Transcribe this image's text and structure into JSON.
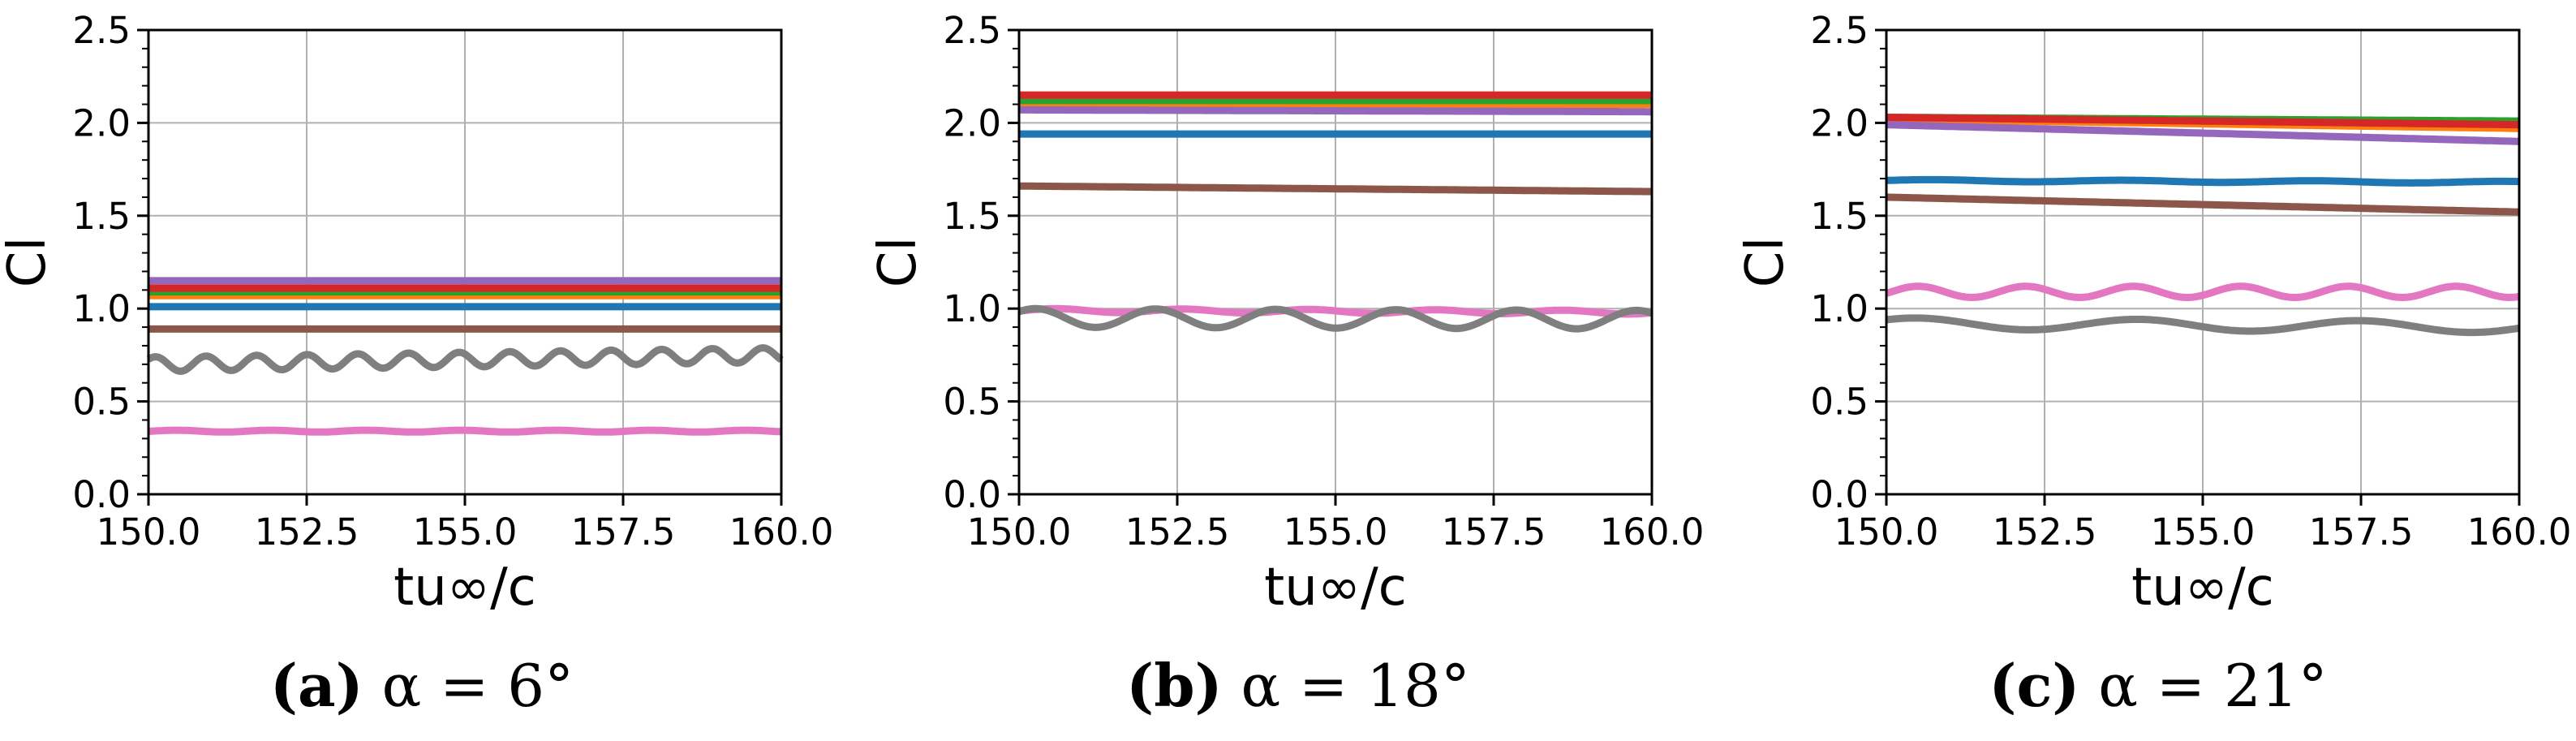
{
  "chart_data": [
    {
      "type": "line",
      "caption": {
        "label": "(a)",
        "text": "α = 6°"
      },
      "xlabel": "tu∞/c",
      "ylabel": "Cl",
      "xlim": [
        150.0,
        160.0
      ],
      "ylim": [
        0.0,
        2.5
      ],
      "xticks": [
        "150.0",
        "152.5",
        "155.0",
        "157.5",
        "160.0"
      ],
      "yticks": [
        "0.0",
        "0.5",
        "1.0",
        "1.5",
        "2.0",
        "2.5"
      ],
      "grid": true,
      "series": [
        {
          "color": "#1f77b4",
          "start": 1.01,
          "end": 1.01,
          "amp": 0.0,
          "period": 1
        },
        {
          "color": "#ff7f0e",
          "start": 1.07,
          "end": 1.07,
          "amp": 0.0,
          "period": 1
        },
        {
          "color": "#2ca02c",
          "start": 1.09,
          "end": 1.09,
          "amp": 0.0,
          "period": 1
        },
        {
          "color": "#d62728",
          "start": 1.11,
          "end": 1.11,
          "amp": 0.0,
          "period": 1
        },
        {
          "color": "#9467bd",
          "start": 1.15,
          "end": 1.15,
          "amp": 0.0,
          "period": 1
        },
        {
          "color": "#8c564b",
          "start": 0.89,
          "end": 0.89,
          "amp": 0.0,
          "period": 1
        },
        {
          "color": "#e377c2",
          "start": 0.34,
          "end": 0.34,
          "amp": 0.005,
          "period": 1.5
        },
        {
          "color": "#7f7f7f",
          "start": 0.7,
          "end": 0.75,
          "amp": 0.04,
          "period": 0.8
        }
      ]
    },
    {
      "type": "line",
      "caption": {
        "label": "(b)",
        "text": "α = 18°"
      },
      "xlabel": "tu∞/c",
      "ylabel": "Cl",
      "xlim": [
        150.0,
        160.0
      ],
      "ylim": [
        0.0,
        2.5
      ],
      "xticks": [
        "150.0",
        "152.5",
        "155.0",
        "157.5",
        "160.0"
      ],
      "yticks": [
        "0.0",
        "0.5",
        "1.0",
        "1.5",
        "2.0",
        "2.5"
      ],
      "grid": true,
      "series": [
        {
          "color": "#1f77b4",
          "start": 1.94,
          "end": 1.94,
          "amp": 0.0,
          "period": 1
        },
        {
          "color": "#ff7f0e",
          "start": 2.1,
          "end": 2.1,
          "amp": 0.0,
          "period": 1
        },
        {
          "color": "#2ca02c",
          "start": 2.12,
          "end": 2.12,
          "amp": 0.0,
          "period": 1
        },
        {
          "color": "#d62728",
          "start": 2.15,
          "end": 2.15,
          "amp": 0.0,
          "period": 1
        },
        {
          "color": "#9467bd",
          "start": 2.07,
          "end": 2.06,
          "amp": 0.0,
          "period": 1
        },
        {
          "color": "#8c564b",
          "start": 1.66,
          "end": 1.63,
          "amp": 0.0,
          "period": 1
        },
        {
          "color": "#e377c2",
          "start": 0.99,
          "end": 0.98,
          "amp": 0.01,
          "period": 2.0
        },
        {
          "color": "#7f7f7f",
          "start": 0.95,
          "end": 0.94,
          "amp": 0.05,
          "period": 1.9
        }
      ]
    },
    {
      "type": "line",
      "caption": {
        "label": "(c)",
        "text": "α = 21°"
      },
      "xlabel": "tu∞/c",
      "ylabel": "Cl",
      "xlim": [
        150.0,
        160.0
      ],
      "ylim": [
        0.0,
        2.5
      ],
      "xticks": [
        "150.0",
        "152.5",
        "155.0",
        "157.5",
        "160.0"
      ],
      "yticks": [
        "0.0",
        "0.5",
        "1.0",
        "1.5",
        "2.0",
        "2.5"
      ],
      "grid": true,
      "series": [
        {
          "color": "#1f77b4",
          "start": 1.69,
          "end": 1.68,
          "amp": 0.005,
          "period": 3
        },
        {
          "color": "#ff7f0e",
          "start": 2.02,
          "end": 1.97,
          "amp": 0.0,
          "period": 1
        },
        {
          "color": "#2ca02c",
          "start": 2.03,
          "end": 2.01,
          "amp": 0.0,
          "period": 1
        },
        {
          "color": "#d62728",
          "start": 2.03,
          "end": 1.99,
          "amp": 0.0,
          "period": 1
        },
        {
          "color": "#9467bd",
          "start": 1.99,
          "end": 1.9,
          "amp": 0.0,
          "period": 1
        },
        {
          "color": "#8c564b",
          "start": 1.6,
          "end": 1.52,
          "amp": 0.0,
          "period": 1
        },
        {
          "color": "#e377c2",
          "start": 1.09,
          "end": 1.09,
          "amp": 0.03,
          "period": 1.7
        },
        {
          "color": "#7f7f7f",
          "start": 0.92,
          "end": 0.9,
          "amp": 0.03,
          "period": 3.5
        }
      ]
    }
  ]
}
